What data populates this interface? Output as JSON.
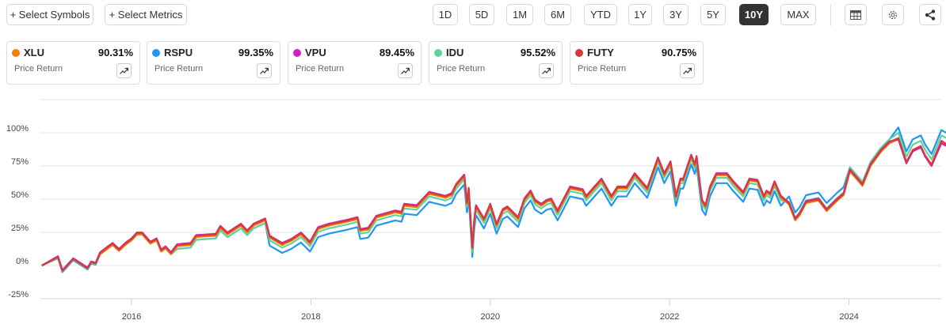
{
  "toolbar": {
    "select_symbols": "+ Select Symbols",
    "select_metrics": "+ Select Metrics",
    "periods": [
      "1D",
      "5D",
      "1M",
      "6M",
      "YTD",
      "1Y",
      "3Y",
      "5Y",
      "10Y",
      "MAX"
    ],
    "active_period": "10Y",
    "icons": [
      "table-icon",
      "gear-icon",
      "share-icon"
    ]
  },
  "cards": [
    {
      "symbol": "XLU",
      "value": "90.31%",
      "metric": "Price Return",
      "color": "#f57c00"
    },
    {
      "symbol": "RSPU",
      "value": "99.35%",
      "metric": "Price Return",
      "color": "#2196f3"
    },
    {
      "symbol": "VPU",
      "value": "89.45%",
      "metric": "Price Return",
      "color": "#d21fbf"
    },
    {
      "symbol": "IDU",
      "value": "95.52%",
      "metric": "Price Return",
      "color": "#5fd49f"
    },
    {
      "symbol": "FUTY",
      "value": "90.75%",
      "metric": "Price Return",
      "color": "#d63a3a"
    }
  ],
  "chart_data": {
    "type": "line",
    "title": "",
    "xlabel": "",
    "ylabel": "Price Return",
    "ylim": [
      -25,
      125
    ],
    "xlim": [
      2014.98,
      2025.1
    ],
    "yticks": [
      -25,
      0,
      25,
      50,
      75,
      100
    ],
    "ytick_labels": [
      "-25%",
      "0%",
      "25%",
      "50%",
      "75%",
      "100%"
    ],
    "xticks": [
      2016,
      2018,
      2020,
      2022,
      2024
    ],
    "xtick_labels": [
      "2016",
      "2018",
      "2020",
      "2022",
      "2024"
    ],
    "grid": true,
    "x": [
      2015.0,
      2015.18,
      2015.23,
      2015.35,
      2015.51,
      2015.55,
      2015.6,
      2015.65,
      2015.79,
      2015.86,
      2015.93,
      2016.0,
      2016.06,
      2016.12,
      2016.21,
      2016.28,
      2016.33,
      2016.38,
      2016.44,
      2016.51,
      2016.66,
      2016.72,
      2016.94,
      2016.99,
      2017.07,
      2017.22,
      2017.29,
      2017.36,
      2017.49,
      2017.54,
      2017.68,
      2017.78,
      2017.89,
      2017.99,
      2018.08,
      2018.2,
      2018.41,
      2018.52,
      2018.55,
      2018.64,
      2018.73,
      2018.94,
      2019.01,
      2019.04,
      2019.18,
      2019.32,
      2019.5,
      2019.57,
      2019.62,
      2019.71,
      2019.74,
      2019.76,
      2019.8,
      2019.82,
      2019.84,
      2019.93,
      2020.0,
      2020.07,
      2020.14,
      2020.19,
      2020.31,
      2020.38,
      2020.45,
      2020.5,
      2020.57,
      2020.63,
      2020.68,
      2020.75,
      2020.89,
      2021.03,
      2021.07,
      2021.24,
      2021.35,
      2021.42,
      2021.52,
      2021.61,
      2021.75,
      2021.87,
      2021.94,
      2022.01,
      2022.07,
      2022.12,
      2022.15,
      2022.24,
      2022.28,
      2022.3,
      2022.36,
      2022.4,
      2022.45,
      2022.52,
      2022.64,
      2022.71,
      2022.82,
      2022.89,
      2022.98,
      2023.05,
      2023.08,
      2023.12,
      2023.17,
      2023.24,
      2023.33,
      2023.4,
      2023.45,
      2023.52,
      2023.66,
      2023.75,
      2023.87,
      2023.94,
      2024.01,
      2024.15,
      2024.24,
      2024.36,
      2024.45,
      2024.55,
      2024.64,
      2024.71,
      2024.8,
      2024.85,
      2024.92,
      2025.03,
      2025.1
    ],
    "series": [
      {
        "name": "RSPU",
        "color": "#2196f3",
        "values": [
          0,
          5.5,
          -5,
          4,
          -3,
          1.6,
          0.6,
          8.5,
          15.5,
          11,
          15.5,
          19,
          23.4,
          23.4,
          16.5,
          19,
          10.5,
          13,
          8.5,
          12.5,
          13.5,
          19.4,
          20.4,
          26.4,
          21.4,
          28,
          23,
          28,
          32,
          15,
          9.5,
          12.5,
          17.4,
          10.5,
          21.4,
          24,
          27,
          29,
          20,
          21,
          30,
          34,
          33,
          39,
          38,
          48,
          45,
          47,
          54,
          61,
          40,
          51,
          6.5,
          26,
          38,
          28,
          39,
          24,
          35,
          37,
          29,
          43,
          49,
          42,
          39,
          42,
          43,
          34,
          52,
          50,
          45,
          58,
          45,
          52,
          52,
          62,
          51,
          74,
          62,
          71,
          45,
          58,
          58,
          76,
          69,
          75,
          42,
          38,
          52,
          62,
          62,
          56,
          48,
          58,
          57,
          45,
          49,
          47,
          56,
          45,
          52,
          40,
          44,
          53,
          55,
          47,
          55,
          59,
          74,
          63,
          78,
          89,
          95,
          104,
          86,
          95,
          98,
          91,
          84,
          102,
          99.35
        ]
      },
      {
        "name": "IDU",
        "color": "#5fd49f",
        "values": [
          0,
          6,
          -4.5,
          4.5,
          -2.5,
          2.1,
          1.1,
          9,
          16,
          11.5,
          16,
          19.5,
          23.9,
          23.9,
          17,
          19.5,
          11,
          13.5,
          9,
          12.5,
          13.5,
          19.4,
          20.4,
          26.4,
          21.4,
          28,
          23,
          28,
          32,
          19,
          13.5,
          16.5,
          21.4,
          14.5,
          25.4,
          28,
          31,
          33,
          24,
          25,
          34,
          38,
          37,
          43,
          42,
          52,
          49,
          51,
          58,
          65,
          44,
          55,
          10.5,
          30,
          42,
          32,
          43,
          28,
          39,
          41,
          33,
          47,
          53,
          46,
          43,
          46,
          47,
          38,
          56,
          54,
          49,
          62,
          49,
          56,
          56,
          66,
          55,
          78,
          66,
          75,
          49,
          62,
          62,
          80,
          73,
          79,
          46,
          42,
          56,
          66,
          66,
          60,
          52,
          62,
          61,
          49,
          53,
          51,
          60,
          49,
          48,
          36,
          40,
          49,
          51,
          43,
          51,
          55,
          74,
          63,
          78,
          89,
          95,
          100,
          82,
          91,
          94,
          87,
          80,
          98,
          95.52
        ]
      },
      {
        "name": "XLU",
        "color": "#f57c00",
        "values": [
          0,
          6.5,
          -4,
          5,
          -2,
          2.6,
          1.6,
          8.5,
          15.5,
          11,
          15.5,
          19,
          23.4,
          23.4,
          16.5,
          19,
          10.5,
          13,
          8.5,
          14.5,
          15.5,
          21.4,
          22.4,
          28.4,
          23.4,
          30,
          25,
          30,
          34,
          21,
          15.5,
          18.5,
          23.4,
          16.5,
          27.4,
          30,
          33,
          35,
          26,
          27,
          36,
          40,
          39,
          45,
          44,
          54,
          51,
          53,
          60,
          67,
          46,
          57,
          12.5,
          32,
          44,
          34,
          45,
          30,
          41,
          43,
          35,
          49,
          55,
          48,
          45,
          48,
          49,
          40,
          58,
          56,
          51,
          64,
          51,
          58,
          58,
          68,
          57,
          80,
          68,
          77,
          51,
          64,
          64,
          82,
          75,
          81,
          48,
          44,
          58,
          68,
          68,
          62,
          54,
          64,
          63,
          51,
          55,
          53,
          62,
          51,
          46,
          34,
          38,
          47,
          49,
          41,
          49,
          53,
          71,
          60,
          75,
          86,
          92,
          95,
          77,
          86,
          89,
          82,
          75,
          93,
          90.31
        ]
      },
      {
        "name": "VPU",
        "color": "#d21fbf",
        "values": [
          0,
          7,
          -3.5,
          5.5,
          -1.5,
          3.1,
          2.1,
          10,
          17,
          12.5,
          17,
          20.5,
          24.9,
          24.9,
          18,
          20.5,
          12,
          14.5,
          10,
          16,
          17,
          22.9,
          23.9,
          29.9,
          24.9,
          31.5,
          26.5,
          31.5,
          35.5,
          22.5,
          17,
          20,
          24.9,
          18,
          28.9,
          31.5,
          34.5,
          36.5,
          27.5,
          28.5,
          37.5,
          41.5,
          40.5,
          46.5,
          45.5,
          55.5,
          52.5,
          54.5,
          61.5,
          68.5,
          47.5,
          58.5,
          14,
          33.5,
          45.5,
          35.5,
          46.5,
          31.5,
          42.5,
          44.5,
          36.5,
          50.5,
          56.5,
          49.5,
          46.5,
          49.5,
          50.5,
          41.5,
          59.5,
          57.5,
          52.5,
          65.5,
          52.5,
          59.5,
          59.5,
          69.5,
          58.5,
          81.5,
          69.5,
          78.5,
          52.5,
          65.5,
          65.5,
          83.5,
          76.5,
          82.5,
          49.5,
          45.5,
          59.5,
          69.5,
          69.5,
          63.5,
          55.5,
          65.5,
          64.5,
          52.5,
          56.5,
          54.5,
          63.5,
          52.5,
          47.5,
          35.5,
          39.5,
          48.5,
          50.5,
          42.5,
          50.5,
          54.5,
          72.5,
          61.5,
          76.5,
          87.5,
          93.5,
          95,
          77,
          86,
          89,
          82,
          75,
          92,
          89.45
        ]
      },
      {
        "name": "FUTY",
        "color": "#d63a3a",
        "values": [
          0,
          6.5,
          -4,
          5,
          -2,
          2.6,
          1.6,
          9.5,
          16.5,
          12,
          16.5,
          20,
          24.4,
          24.4,
          17.5,
          20,
          11.5,
          14,
          9.5,
          15.5,
          16.5,
          22.4,
          23.4,
          29.4,
          24.4,
          31,
          26,
          31,
          35,
          22,
          16.5,
          19.5,
          24.4,
          17.5,
          28.4,
          31,
          34,
          36,
          27,
          28,
          37,
          41,
          40,
          46,
          45,
          55,
          52,
          54,
          61,
          68,
          47,
          58,
          13.5,
          33,
          45,
          35,
          46,
          31,
          42,
          44,
          36,
          50,
          56,
          49,
          46,
          49,
          50,
          41,
          59,
          57,
          52,
          65,
          52,
          59,
          59,
          69,
          58,
          81,
          69,
          78,
          52,
          65,
          65,
          83,
          76,
          82,
          49,
          45,
          59,
          69,
          69,
          63,
          55,
          65,
          64,
          52,
          56,
          54,
          63,
          52,
          47,
          35,
          39,
          48,
          50,
          42,
          50,
          54,
          72,
          61,
          76,
          87,
          93,
          96,
          78,
          87,
          90,
          83,
          76,
          94,
          90.75
        ]
      }
    ]
  }
}
